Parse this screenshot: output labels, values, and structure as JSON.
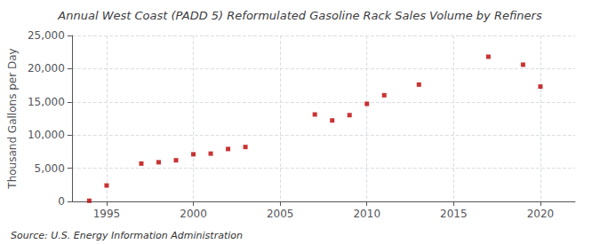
{
  "chart_data": {
    "type": "scatter",
    "title": "Annual West Coast (PADD 5) Reformulated Gasoline Rack Sales Volume by Refiners",
    "ylabel": "Thousand Gallons per Day",
    "annotations": [
      "Source: U.S. Energy Information Administration"
    ],
    "x": [
      1994,
      1995,
      1997,
      1998,
      1999,
      2000,
      2001,
      2002,
      2003,
      2007,
      2008,
      2009,
      2010,
      2011,
      2013,
      2017,
      2019,
      2020
    ],
    "values": [
      100,
      2400,
      5700,
      5900,
      6200,
      7100,
      7200,
      7900,
      8200,
      13100,
      12200,
      13000,
      14700,
      16000,
      17600,
      21800,
      20600,
      17300
    ],
    "color": "#bb0000",
    "marker": "square",
    "xlim": [
      1993,
      2022
    ],
    "xticks": [
      1995,
      2000,
      2005,
      2010,
      2015,
      2020
    ],
    "ylim": [
      0,
      25000
    ],
    "yticks": [
      0,
      {
        "value": 5000,
        "label": "5,000"
      },
      {
        "value": 10000,
        "label": "10,000"
      },
      {
        "value": 15000,
        "label": "15,000"
      },
      {
        "value": 20000,
        "label": "20,000"
      },
      {
        "value": 25000,
        "label": "25,000"
      }
    ],
    "grid": true
  }
}
